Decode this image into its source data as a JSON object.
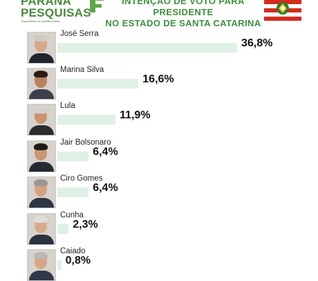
{
  "header": {
    "brand_line1": "PARANÁ",
    "brand_line2": "PESQUISAS",
    "brand_tagline": "Especialista em opinião pública",
    "title_line1": "INTENÇÃO DE VOTO PARA PRESIDENTE",
    "title_line2": "NO ESTADO DE SANTA CATARINA",
    "brand_color": "#4a8a3a",
    "title_color": "#3d8f3d",
    "flag_colors": [
      "#d52b1e",
      "#ffffff",
      "#2e7d32"
    ]
  },
  "chart_data": {
    "type": "bar",
    "orientation": "horizontal",
    "title": "",
    "xlabel": "",
    "ylabel": "",
    "categories": [
      "José Serra",
      "Marina Silva",
      "Lula",
      "Jair Bolsonaro",
      "Ciro Gomes",
      "Cunha",
      "Caiado"
    ],
    "values": [
      36.8,
      16.6,
      11.9,
      6.4,
      6.4,
      2.3,
      0.8
    ],
    "value_labels": [
      "36,8%",
      "16,6%",
      "11,9%",
      "6,4%",
      "6,4%",
      "2,3%",
      "0,8%"
    ],
    "xlim": [
      0,
      36.8
    ],
    "grid": false,
    "legend": "none",
    "bar_color": "#dff0e5"
  }
}
